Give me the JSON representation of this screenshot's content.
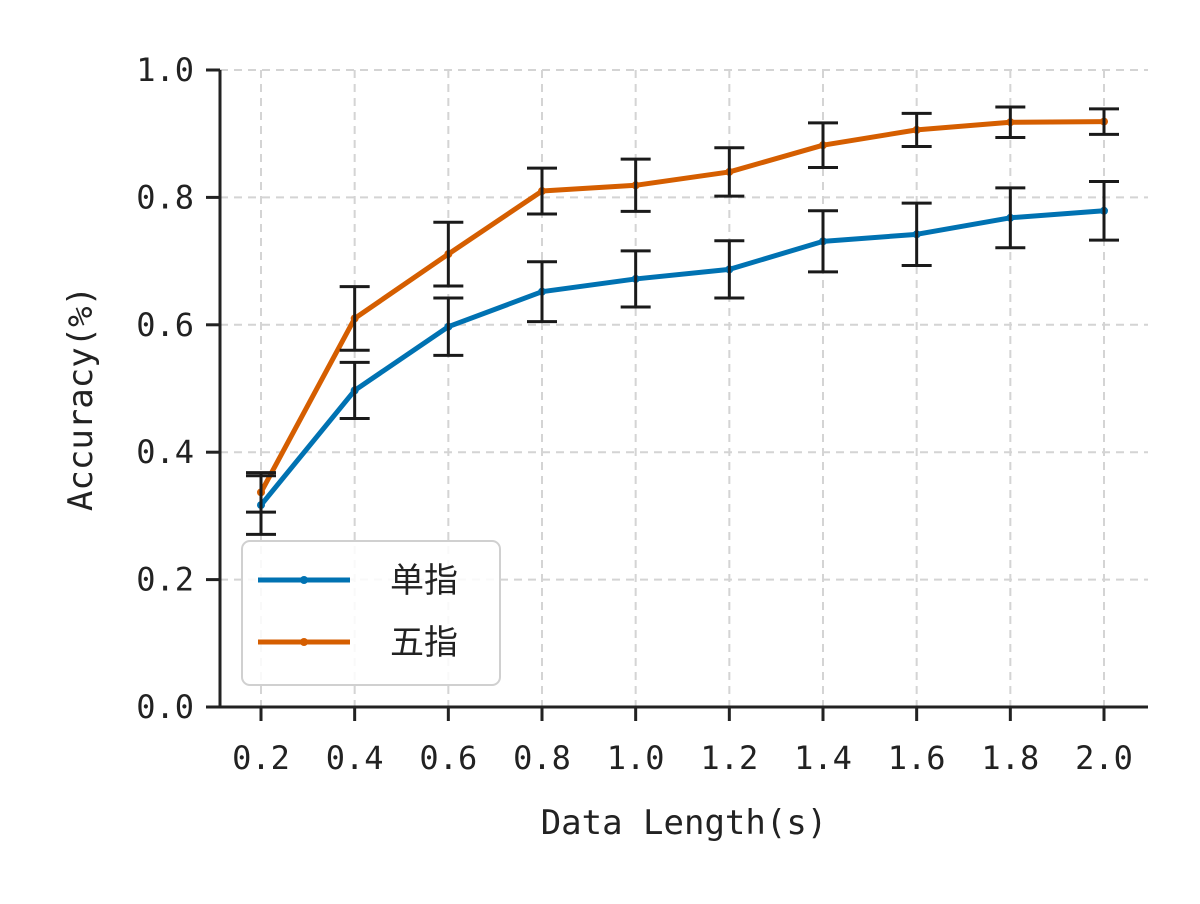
{
  "chart_data": {
    "type": "line",
    "title": "",
    "xlabel": "Data Length(s)",
    "ylabel": "Accuracy(%)",
    "x": [
      0.2,
      0.4,
      0.6,
      0.8,
      1.0,
      1.2,
      1.4,
      1.6,
      1.8,
      2.0
    ],
    "x_tick_labels": [
      "0.2",
      "0.4",
      "0.6",
      "0.8",
      "1.0",
      "1.2",
      "1.4",
      "1.6",
      "1.8",
      "2.0"
    ],
    "y_ticks": [
      0.0,
      0.2,
      0.4,
      0.6,
      0.8,
      1.0
    ],
    "y_tick_labels": [
      "0.0",
      "0.2",
      "0.4",
      "0.6",
      "0.8",
      "1.0"
    ],
    "ylim": [
      0.0,
      1.0
    ],
    "grid": true,
    "legend_position": "lower-left",
    "series": [
      {
        "name": "单指",
        "color": "#0072b2",
        "values": [
          0.317,
          0.497,
          0.597,
          0.652,
          0.672,
          0.687,
          0.731,
          0.742,
          0.768,
          0.779
        ],
        "error": [
          0.046,
          0.044,
          0.045,
          0.047,
          0.044,
          0.045,
          0.048,
          0.049,
          0.047,
          0.046
        ]
      },
      {
        "name": "五指",
        "color": "#d55e00",
        "values": [
          0.337,
          0.61,
          0.711,
          0.81,
          0.819,
          0.84,
          0.882,
          0.906,
          0.918,
          0.919
        ],
        "error": [
          0.031,
          0.05,
          0.05,
          0.036,
          0.041,
          0.038,
          0.035,
          0.026,
          0.024,
          0.02
        ]
      }
    ]
  }
}
